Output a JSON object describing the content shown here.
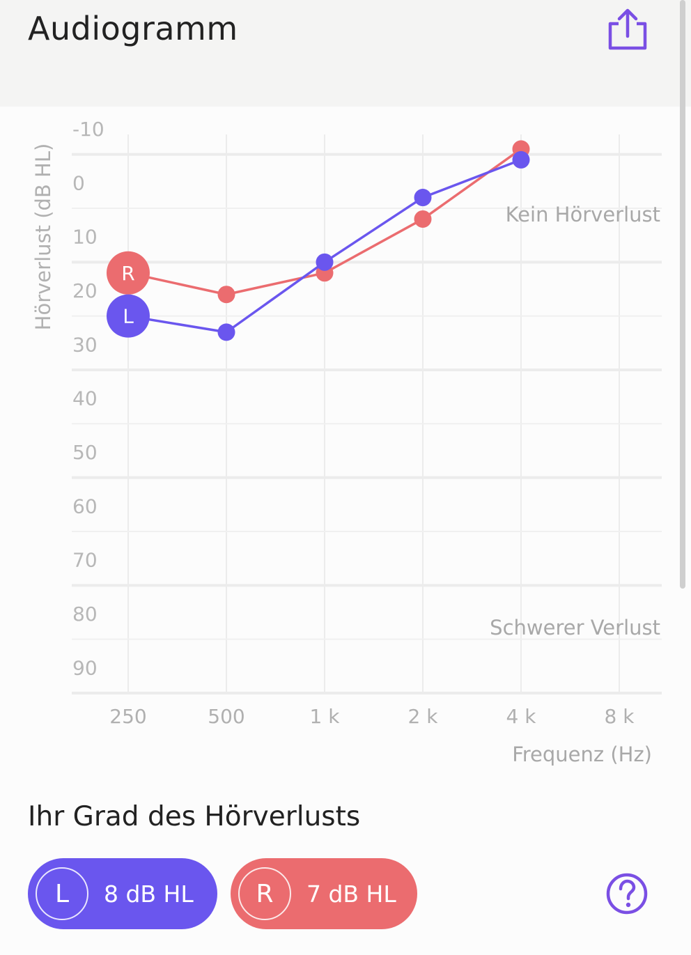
{
  "header": {
    "title": "Audiogramm",
    "share_icon": "share-icon"
  },
  "section": {
    "title": "Ihr Grad des Hörverlusts"
  },
  "summary": {
    "left": {
      "badge": "L",
      "value": "8 dB HL"
    },
    "right": {
      "badge": "R",
      "value": "7 dB HL"
    },
    "help_icon": "help-icon"
  },
  "colors": {
    "left": "#6a56ee",
    "right": "#eb6c6f",
    "accent": "#7a4fe4"
  },
  "chart_data": {
    "type": "line",
    "ylabel": "Hörverlust (dB HL)",
    "xlabel": "Frequenz (Hz)",
    "x": [
      250,
      500,
      1000,
      2000,
      4000,
      8000
    ],
    "x_tick_labels": [
      "250",
      "500",
      "1 k",
      "2 k",
      "4 k",
      "8 k"
    ],
    "y_tick_labels": [
      "-10",
      "0",
      "10",
      "20",
      "30",
      "40",
      "50",
      "60",
      "70",
      "80",
      "90"
    ],
    "ylim": [
      -10,
      95
    ],
    "y_inverted": true,
    "x_scale": "log2",
    "grid": true,
    "annotations": [
      "Kein Hörverlust",
      "Schwerer Verlust"
    ],
    "series": [
      {
        "name": "R",
        "color": "#eb6c6f",
        "x": [
          250,
          500,
          1000,
          2000,
          4000
        ],
        "values": [
          17,
          21,
          17,
          7,
          -6
        ]
      },
      {
        "name": "L",
        "color": "#6a56ee",
        "x": [
          250,
          500,
          1000,
          2000,
          4000
        ],
        "values": [
          25,
          28,
          15,
          3,
          -4
        ]
      }
    ]
  }
}
